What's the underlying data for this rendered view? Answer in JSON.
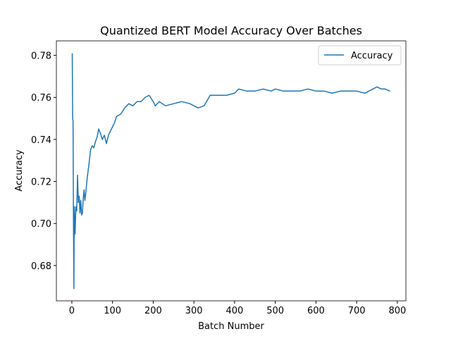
{
  "chart_data": {
    "type": "line",
    "title": "Quantized BERT Model Accuracy Over Batches",
    "xlabel": "Batch Number",
    "ylabel": "Accuracy",
    "x": [
      1,
      2,
      3,
      4,
      5,
      6,
      8,
      10,
      12,
      14,
      16,
      18,
      20,
      22,
      24,
      26,
      28,
      30,
      32,
      34,
      38,
      42,
      46,
      50,
      54,
      58,
      62,
      66,
      70,
      75,
      80,
      85,
      90,
      95,
      100,
      105,
      110,
      120,
      130,
      140,
      150,
      160,
      170,
      180,
      190,
      200,
      205,
      215,
      230,
      250,
      270,
      290,
      310,
      325,
      340,
      360,
      380,
      400,
      410,
      430,
      450,
      470,
      490,
      500,
      520,
      540,
      560,
      580,
      600,
      620,
      640,
      660,
      680,
      700,
      720,
      740,
      750,
      760,
      770,
      782
    ],
    "series": [
      {
        "name": "Accuracy",
        "color": "#1f77b4",
        "values": [
          0.781,
          0.75,
          0.749,
          0.7,
          0.669,
          0.708,
          0.695,
          0.708,
          0.706,
          0.723,
          0.71,
          0.713,
          0.705,
          0.711,
          0.704,
          0.705,
          0.712,
          0.716,
          0.711,
          0.714,
          0.722,
          0.728,
          0.735,
          0.737,
          0.736,
          0.739,
          0.741,
          0.745,
          0.743,
          0.74,
          0.742,
          0.738,
          0.742,
          0.744,
          0.746,
          0.748,
          0.751,
          0.752,
          0.755,
          0.757,
          0.756,
          0.758,
          0.758,
          0.76,
          0.761,
          0.758,
          0.756,
          0.758,
          0.756,
          0.757,
          0.758,
          0.757,
          0.755,
          0.756,
          0.761,
          0.761,
          0.761,
          0.762,
          0.764,
          0.763,
          0.763,
          0.764,
          0.763,
          0.764,
          0.763,
          0.763,
          0.763,
          0.764,
          0.763,
          0.763,
          0.762,
          0.763,
          0.763,
          0.763,
          0.762,
          0.764,
          0.765,
          0.764,
          0.764,
          0.763
        ]
      }
    ],
    "xlim": [
      -38,
      821
    ],
    "ylim": [
      0.6632,
      0.7869
    ],
    "xticks": [
      0,
      100,
      200,
      300,
      400,
      500,
      600,
      700,
      800
    ],
    "yticks": [
      0.68,
      {
        "value": 0.7,
        "label": "0.70"
      },
      0.72,
      0.74,
      0.76,
      0.78
    ],
    "grid": false,
    "legend": "upper-right"
  }
}
